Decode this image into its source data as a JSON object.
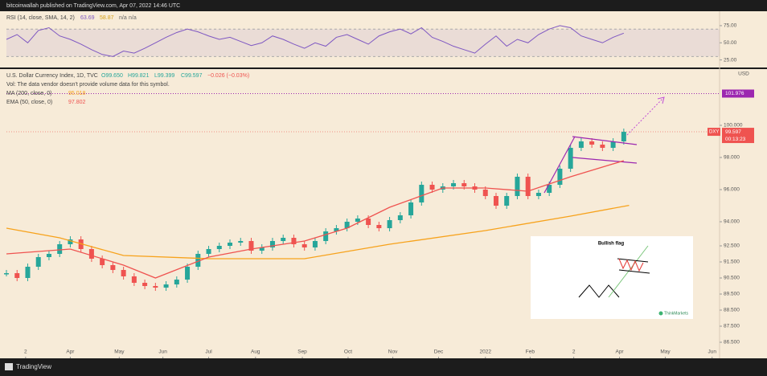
{
  "header": {
    "publisher": "bitcoinwallah published on TradingView.com, Apr 07, 2022 14:46 UTC"
  },
  "footer": {
    "brand": "TradingView"
  },
  "chart_data": [
    {
      "type": "line",
      "indicator": "RSI (14, close, SMA, 14, 2)",
      "readouts": [
        "63.69",
        "58.87",
        "n/a",
        "n/a"
      ],
      "xlim": [
        0,
        67
      ],
      "ylim": [
        14,
        96
      ],
      "yticks": [
        {
          "value": 25,
          "label": "25.00"
        },
        {
          "value": 50,
          "label": "50.00"
        },
        {
          "value": 75,
          "label": "75.00"
        }
      ],
      "band": [
        30,
        70
      ],
      "series": [
        {
          "color": "#7e57c2",
          "x": [
            0,
            1,
            2,
            3,
            4,
            5,
            6,
            7,
            8,
            9,
            10,
            11,
            12,
            13,
            14,
            15,
            16,
            17,
            18,
            19,
            20,
            21,
            22,
            23,
            24,
            25,
            26,
            27,
            28,
            29,
            30,
            31,
            32,
            33,
            34,
            35,
            36,
            37,
            38,
            39,
            40,
            41,
            42,
            43,
            44,
            45,
            46,
            47,
            48,
            49,
            50,
            51,
            52,
            53,
            54,
            55,
            56,
            57,
            58
          ],
          "values": [
            55,
            62,
            50,
            68,
            72,
            60,
            55,
            48,
            40,
            33,
            30,
            38,
            35,
            42,
            50,
            58,
            65,
            70,
            66,
            60,
            55,
            58,
            52,
            46,
            50,
            60,
            55,
            48,
            42,
            50,
            45,
            58,
            62,
            55,
            48,
            60,
            66,
            70,
            63,
            72,
            58,
            52,
            45,
            40,
            35,
            48,
            60,
            45,
            55,
            50,
            62,
            70,
            75,
            72,
            60,
            55,
            50,
            58,
            64
          ]
        }
      ]
    },
    {
      "type": "candlestick",
      "title": "U.S. Dollar Currency Index, 1D, TVC",
      "ohlc": [
        "O99.650",
        "H99.821",
        "L99.399",
        "C99.597",
        "−0.026 (−0.03%)"
      ],
      "volume_note": "Vol: The data vendor doesn't provide volume data for this symbol.",
      "symbol": "DXY",
      "unit": "USD",
      "countdown": "00:13:23",
      "target": 101.976,
      "xlim": [
        0,
        67
      ],
      "ylim": [
        85.8,
        103.5
      ],
      "xticks": [
        {
          "value": 1.8,
          "label": "2"
        },
        {
          "value": 6.0,
          "label": "Apr"
        },
        {
          "value": 10.6,
          "label": "May"
        },
        {
          "value": 14.7,
          "label": "Jun"
        },
        {
          "value": 19.0,
          "label": "Jul"
        },
        {
          "value": 23.4,
          "label": "Aug"
        },
        {
          "value": 27.8,
          "label": "Sep"
        },
        {
          "value": 32.1,
          "label": "Oct"
        },
        {
          "value": 36.3,
          "label": "Nov"
        },
        {
          "value": 40.6,
          "label": "Dec"
        },
        {
          "value": 45.0,
          "label": "2022"
        },
        {
          "value": 49.2,
          "label": "Feb"
        },
        {
          "value": 53.3,
          "label": "2"
        },
        {
          "value": 57.6,
          "label": "Apr"
        },
        {
          "value": 61.9,
          "label": "May"
        },
        {
          "value": 66.3,
          "label": "Jun"
        }
      ],
      "yticks": [
        {
          "value": 86.5,
          "label": "86.500"
        },
        {
          "value": 87.5,
          "label": "87.500"
        },
        {
          "value": 88.5,
          "label": "88.500"
        },
        {
          "value": 89.5,
          "label": "89.500"
        },
        {
          "value": 90.5,
          "label": "90.500"
        },
        {
          "value": 91.5,
          "label": "91.500"
        },
        {
          "value": 92.5,
          "label": "92.500"
        },
        {
          "value": 94,
          "label": "94.000"
        },
        {
          "value": 96,
          "label": "96.000"
        },
        {
          "value": 98,
          "label": "98.000"
        },
        {
          "value": 100,
          "label": "100.000"
        }
      ],
      "up_color": "#26a69a",
      "down_color": "#ef5350",
      "series": [
        {
          "x": [
            0,
            1,
            2,
            3,
            4,
            5,
            6,
            7,
            8,
            9,
            10,
            11,
            12,
            13,
            14,
            15,
            16,
            17,
            18,
            19,
            20,
            21,
            22,
            23,
            24,
            25,
            26,
            27,
            28,
            29,
            30,
            31,
            32,
            33,
            34,
            35,
            36,
            37,
            38,
            39,
            40,
            41,
            42,
            43,
            44,
            45,
            46,
            47,
            48,
            49,
            50,
            51,
            52,
            53,
            54,
            55,
            56,
            57,
            58
          ],
          "values": [
            90.8,
            90.5,
            91.2,
            91.8,
            92.0,
            92.6,
            92.9,
            92.3,
            91.7,
            91.3,
            91.0,
            90.6,
            90.2,
            90.0,
            89.9,
            90.1,
            90.4,
            91.2,
            92.0,
            92.3,
            92.5,
            92.7,
            92.8,
            92.2,
            92.4,
            92.8,
            93.0,
            92.6,
            92.4,
            92.8,
            93.4,
            93.6,
            94.0,
            94.2,
            93.8,
            93.6,
            94.1,
            94.4,
            95.2,
            96.3,
            96.0,
            96.2,
            96.4,
            96.2,
            96.0,
            95.6,
            95.0,
            95.6,
            96.8,
            95.6,
            95.8,
            96.3,
            97.3,
            98.6,
            99.0,
            98.8,
            98.6,
            99.0,
            99.597
          ]
        },
        {
          "name": "MA (200, close, 0)",
          "color": "#f7a21b",
          "x": [
            0,
            5,
            11,
            19,
            28,
            36,
            45,
            53,
            58.5
          ],
          "values": [
            93.6,
            93.0,
            91.9,
            91.7,
            91.7,
            92.6,
            93.45,
            94.35,
            95.018
          ]
        },
        {
          "name": "EMA (50, close, 0)",
          "color": "#ef5350",
          "x": [
            0,
            6,
            11,
            14,
            19,
            23,
            28,
            32,
            36,
            41,
            45,
            49,
            53,
            58
          ],
          "values": [
            92.0,
            92.3,
            91.3,
            90.5,
            91.8,
            92.3,
            92.8,
            93.6,
            94.9,
            96.1,
            96.1,
            95.9,
            96.8,
            97.802
          ]
        }
      ]
    }
  ],
  "inset": {
    "title": "Bullish flag",
    "brand": "ThinkMarkets"
  }
}
